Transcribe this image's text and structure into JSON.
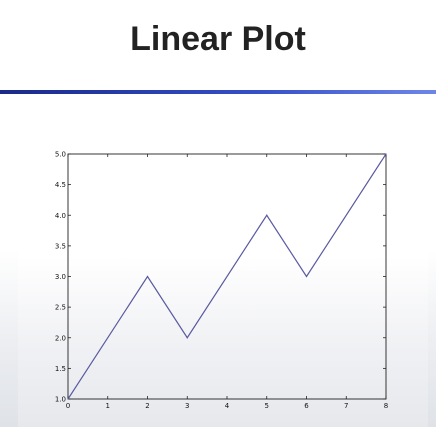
{
  "slide": {
    "title": "Linear Plot"
  },
  "colors": {
    "divider": "#2a40b0",
    "line": "#5a5aa0",
    "axes": "#222222"
  },
  "chart_data": {
    "type": "line",
    "title": "",
    "xlabel": "",
    "ylabel": "",
    "xlim": [
      0,
      8
    ],
    "ylim": [
      1.0,
      5.0
    ],
    "x_ticks": [
      "0",
      "1",
      "2",
      "3",
      "4",
      "5",
      "6",
      "7",
      "8"
    ],
    "y_ticks": [
      "1.0",
      "1.5",
      "2.0",
      "2.5",
      "3.0",
      "3.5",
      "4.0",
      "4.5",
      "5.0"
    ],
    "grid": false,
    "series": [
      {
        "x": [
          0,
          2,
          3,
          5,
          6,
          8
        ],
        "values": [
          1.0,
          3.0,
          2.0,
          4.0,
          3.0,
          5.0
        ]
      }
    ]
  }
}
